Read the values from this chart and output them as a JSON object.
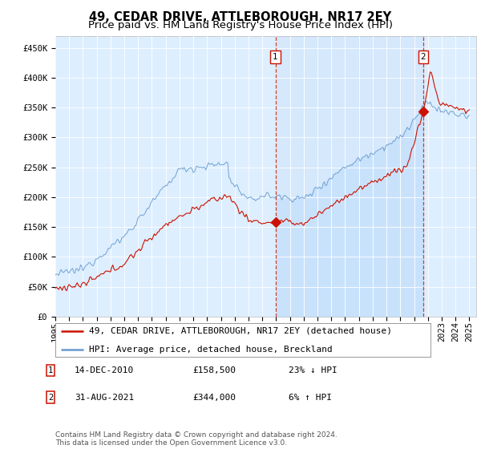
{
  "title": "49, CEDAR DRIVE, ATTLEBOROUGH, NR17 2EY",
  "subtitle": "Price paid vs. HM Land Registry's House Price Index (HPI)",
  "ylabel_ticks": [
    "£0",
    "£50K",
    "£100K",
    "£150K",
    "£200K",
    "£250K",
    "£300K",
    "£350K",
    "£400K",
    "£450K"
  ],
  "ytick_values": [
    0,
    50000,
    100000,
    150000,
    200000,
    250000,
    300000,
    350000,
    400000,
    450000
  ],
  "ylim": [
    0,
    470000
  ],
  "xlim_start": 1995.2,
  "xlim_end": 2025.5,
  "xticks": [
    1995,
    1996,
    1997,
    1998,
    1999,
    2000,
    2001,
    2002,
    2003,
    2004,
    2005,
    2006,
    2007,
    2008,
    2009,
    2010,
    2011,
    2012,
    2013,
    2014,
    2015,
    2016,
    2017,
    2018,
    2019,
    2020,
    2021,
    2022,
    2023,
    2024,
    2025
  ],
  "plot_bg": "#ddeeff",
  "hpi_color": "#6699cc",
  "price_color": "#cc1100",
  "marker1_x": 2010.95,
  "marker1_y": 158500,
  "marker2_x": 2021.66,
  "marker2_y": 344000,
  "legend_line1": "49, CEDAR DRIVE, ATTLEBOROUGH, NR17 2EY (detached house)",
  "legend_line2": "HPI: Average price, detached house, Breckland",
  "annotation1_box": "1",
  "annotation1_date": "14-DEC-2010",
  "annotation1_price": "£158,500",
  "annotation1_hpi": "23% ↓ HPI",
  "annotation2_box": "2",
  "annotation2_date": "31-AUG-2021",
  "annotation2_price": "£344,000",
  "annotation2_hpi": "6% ↑ HPI",
  "footer": "Contains HM Land Registry data © Crown copyright and database right 2024.\nThis data is licensed under the Open Government Licence v3.0.",
  "title_fontsize": 10.5,
  "subtitle_fontsize": 9.5,
  "tick_fontsize": 7.5,
  "legend_fontsize": 8,
  "annotation_fontsize": 8,
  "footer_fontsize": 6.5
}
